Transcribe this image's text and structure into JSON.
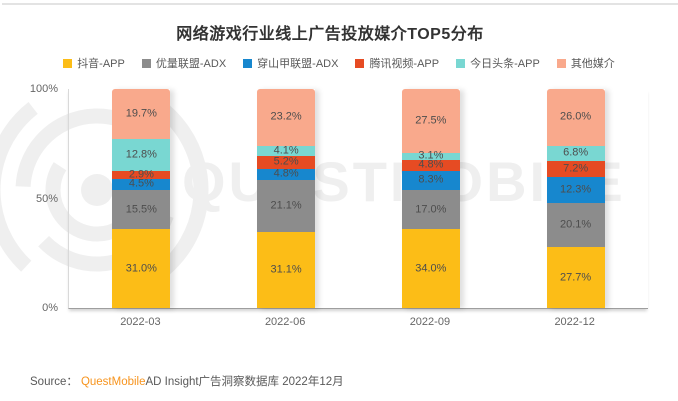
{
  "card": {
    "title": "网络游戏行业线上广告投放媒介TOP5分布",
    "watermark_text": "QUESTMOBILE",
    "source": {
      "prefix": "Source：",
      "brand": "QuestMobile",
      "suffix": "AD Insight广告洞察数据库 2022年12月"
    }
  },
  "colors": {
    "title_text": "#333333",
    "axis_text": "#666666",
    "segment_label_text": "#4d4d4d",
    "legend_text": "#595959",
    "brand_orange": "#f7941e",
    "watermark": "#efefef",
    "axis_line": "#d9d9d9",
    "baseline": "#9e9e9e"
  },
  "chart_data": {
    "type": "bar",
    "stacked": true,
    "normalized_to_100": true,
    "title": "网络游戏行业线上广告投放媒介TOP5分布",
    "categories": [
      "2022-03",
      "2022-06",
      "2022-09",
      "2022-12"
    ],
    "series": [
      {
        "name": "抖音-APP",
        "color": "#fcbd17",
        "values": [
          31.0,
          31.1,
          34.0,
          27.7
        ]
      },
      {
        "name": "优量联盟-ADX",
        "color": "#8c8c8c",
        "values": [
          15.5,
          21.1,
          17.0,
          20.1
        ]
      },
      {
        "name": "穿山甲联盟-ADX",
        "color": "#1787ce",
        "values": [
          4.5,
          4.8,
          8.3,
          12.3
        ]
      },
      {
        "name": "腾讯视频-APP",
        "color": "#e64b23",
        "values": [
          2.9,
          5.2,
          4.8,
          7.2
        ]
      },
      {
        "name": "今日头条-APP",
        "color": "#79d7d2",
        "values": [
          12.8,
          4.1,
          3.1,
          6.8
        ]
      },
      {
        "name": "其他媒介",
        "color": "#f9a98c",
        "values": [
          19.7,
          23.2,
          27.5,
          26.0
        ]
      }
    ],
    "y_axis": {
      "ticks": [
        "100%",
        "50%",
        "0%"
      ],
      "tick_positions_pct": [
        0,
        50,
        100
      ],
      "min": 0,
      "max": 100
    },
    "legend_position": "top",
    "value_suffix": "%",
    "grid": false
  }
}
